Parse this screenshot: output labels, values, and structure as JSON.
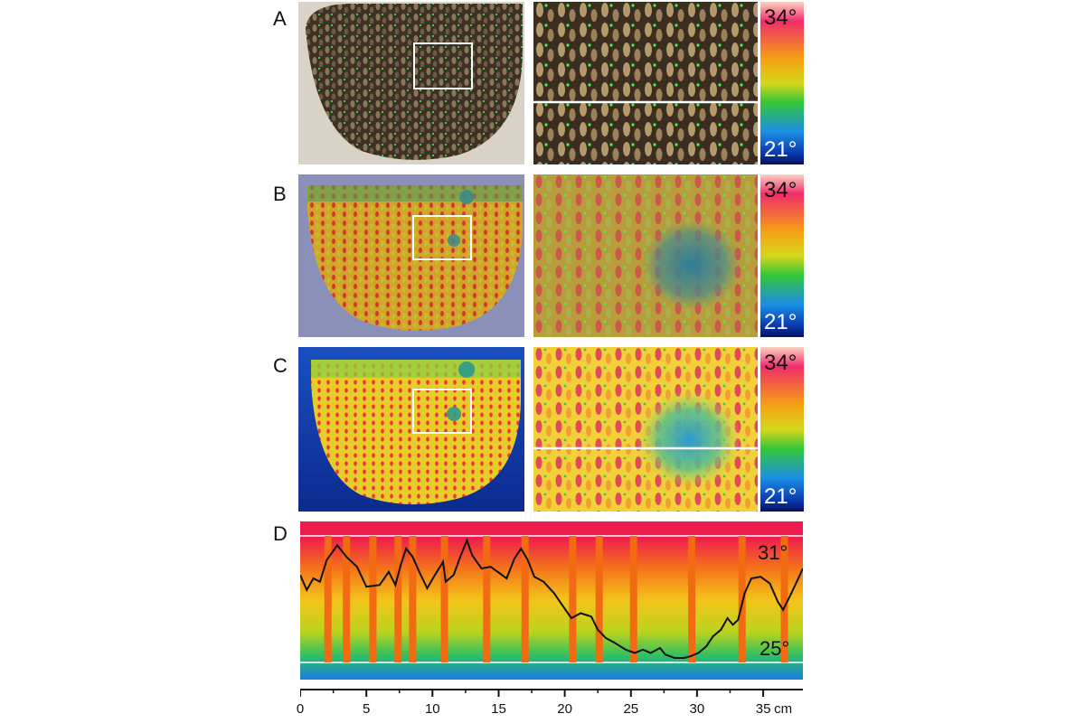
{
  "panels": [
    {
      "letter": "A",
      "scale_max": "34°",
      "scale_min": "21°"
    },
    {
      "letter": "B",
      "scale_max": "34°",
      "scale_min": "21°"
    },
    {
      "letter": "C",
      "scale_max": "34°",
      "scale_min": "21°"
    }
  ],
  "profile": {
    "letter": "D",
    "upper_label": "31°",
    "lower_label": "25°",
    "x_axis": {
      "ticks": [
        "0",
        "5",
        "10",
        "15",
        "20",
        "25",
        "30",
        "35"
      ],
      "tick_values": [
        0,
        5,
        10,
        15,
        20,
        25,
        30,
        35
      ],
      "unit": "cm",
      "range": [
        0,
        38
      ]
    },
    "trace_points": [
      [
        0.0,
        29.4
      ],
      [
        0.5,
        28.5
      ],
      [
        1.0,
        29.2
      ],
      [
        1.5,
        29.0
      ],
      [
        2.0,
        30.3
      ],
      [
        2.8,
        31.2
      ],
      [
        3.5,
        30.5
      ],
      [
        4.3,
        29.9
      ],
      [
        5.0,
        28.7
      ],
      [
        6.0,
        28.8
      ],
      [
        6.7,
        29.6
      ],
      [
        7.2,
        28.8
      ],
      [
        7.6,
        30.0
      ],
      [
        8.0,
        31.0
      ],
      [
        8.5,
        30.5
      ],
      [
        9.0,
        29.6
      ],
      [
        9.6,
        28.6
      ],
      [
        10.1,
        29.3
      ],
      [
        10.8,
        30.2
      ],
      [
        11.0,
        29.0
      ],
      [
        11.6,
        29.4
      ],
      [
        12.1,
        30.5
      ],
      [
        12.6,
        31.5
      ],
      [
        13.0,
        30.6
      ],
      [
        13.7,
        29.8
      ],
      [
        14.4,
        29.9
      ],
      [
        15.1,
        29.5
      ],
      [
        15.6,
        29.2
      ],
      [
        16.2,
        30.4
      ],
      [
        16.7,
        31.0
      ],
      [
        17.2,
        30.3
      ],
      [
        17.7,
        29.3
      ],
      [
        18.4,
        29.0
      ],
      [
        19.2,
        28.3
      ],
      [
        19.8,
        27.6
      ],
      [
        20.5,
        26.8
      ],
      [
        21.2,
        27.1
      ],
      [
        22.0,
        26.9
      ],
      [
        22.5,
        26.1
      ],
      [
        23.1,
        25.6
      ],
      [
        23.8,
        25.3
      ],
      [
        24.6,
        24.9
      ],
      [
        25.3,
        24.7
      ],
      [
        25.9,
        24.9
      ],
      [
        26.5,
        24.7
      ],
      [
        27.2,
        25.0
      ],
      [
        27.6,
        24.6
      ],
      [
        28.3,
        24.4
      ],
      [
        29.0,
        24.4
      ],
      [
        29.5,
        24.5
      ],
      [
        30.1,
        24.7
      ],
      [
        30.7,
        25.1
      ],
      [
        31.2,
        25.7
      ],
      [
        31.8,
        26.1
      ],
      [
        32.3,
        26.8
      ],
      [
        32.7,
        26.4
      ],
      [
        33.1,
        26.7
      ],
      [
        33.6,
        28.3
      ],
      [
        34.1,
        29.2
      ],
      [
        34.8,
        29.3
      ],
      [
        35.5,
        28.9
      ],
      [
        36.1,
        27.8
      ],
      [
        36.5,
        27.3
      ],
      [
        37.0,
        28.1
      ],
      [
        37.6,
        29.1
      ],
      [
        38.0,
        29.8
      ]
    ],
    "markers_cm": [
      2.1,
      3.5,
      5.5,
      7.4,
      8.5,
      10.9,
      14.1,
      17.0,
      20.6,
      22.6,
      25.2,
      29.6,
      33.4,
      36.6
    ]
  }
}
